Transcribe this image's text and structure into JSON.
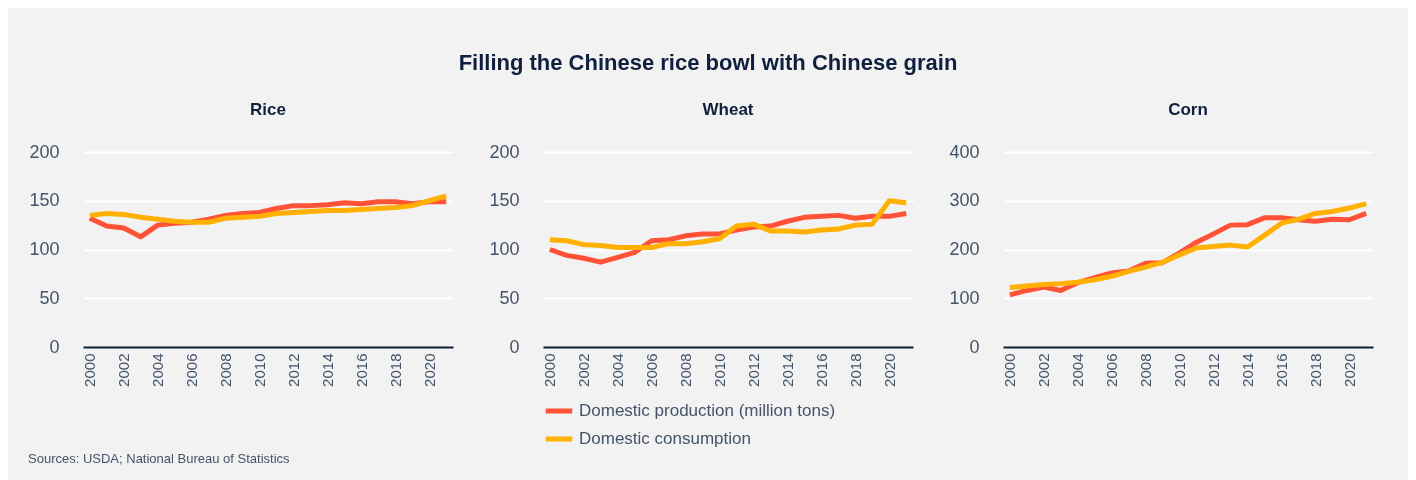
{
  "chart_data": [
    {
      "type": "line",
      "title": "Rice",
      "annotations": [
        "Filling the Chinese rice bowl with Chinese grain",
        "Sources: USDA; National Bureau of Statistics"
      ],
      "categories": [
        "2000",
        null,
        "2002",
        null,
        "2004",
        null,
        "2006",
        null,
        "2008",
        null,
        "2010",
        null,
        "2012",
        null,
        "2014",
        null,
        "2016",
        null,
        "2018",
        null,
        "2020",
        null
      ],
      "series": [
        {
          "color": "#ff5236",
          "values": [
            132,
            124,
            122,
            113,
            125,
            127,
            128,
            131,
            135,
            137,
            138,
            142,
            145,
            145,
            146,
            148,
            147,
            149,
            149,
            147,
            149,
            149
          ]
        },
        {
          "color": "#ffb000",
          "values": [
            135,
            137,
            136,
            133,
            131,
            129,
            128,
            128,
            132,
            133,
            134,
            137,
            138,
            139,
            140,
            140,
            141,
            142,
            143,
            145,
            150,
            155
          ]
        }
      ],
      "ylim": [
        0,
        200
      ],
      "yticks": [
        0,
        50,
        100,
        150,
        200
      ],
      "grid": "y"
    },
    {
      "type": "line",
      "title": "Wheat",
      "categories": [
        "2000",
        null,
        "2002",
        null,
        "2004",
        null,
        "2006",
        null,
        "2008",
        null,
        "2010",
        null,
        "2012",
        null,
        "2014",
        null,
        "2016",
        null,
        "2018",
        null,
        "2020",
        null
      ],
      "series": [
        {
          "name": "Domestic production (million tons)",
          "color": "#ff5236",
          "values": [
            100,
            94,
            91,
            87,
            92,
            97,
            109,
            110,
            114,
            116,
            116,
            120,
            123,
            124,
            129,
            133,
            134,
            135,
            132,
            134,
            134,
            137
          ]
        },
        {
          "name": "Domestic consumption",
          "color": "#ffb000",
          "values": [
            110,
            109,
            105,
            104,
            102,
            102,
            102,
            106,
            106,
            108,
            111,
            124,
            126,
            119,
            119,
            118,
            120,
            121,
            125,
            126,
            150,
            148
          ]
        }
      ],
      "ylim": [
        0,
        200
      ],
      "yticks": [
        0,
        50,
        100,
        150,
        200
      ],
      "grid": "y",
      "legend": "bottom"
    },
    {
      "type": "line",
      "title": "Corn",
      "categories": [
        "2000",
        null,
        "2002",
        null,
        "2004",
        null,
        "2006",
        null,
        "2008",
        null,
        "2010",
        null,
        "2012",
        null,
        "2014",
        null,
        "2016",
        null,
        "2018",
        null,
        "2020",
        null
      ],
      "series": [
        {
          "color": "#ff5236",
          "values": [
            107,
            116,
            123,
            116,
            132,
            142,
            152,
            156,
            172,
            173,
            193,
            215,
            232,
            250,
            251,
            265,
            265,
            261,
            258,
            262,
            261,
            274
          ]
        },
        {
          "color": "#ffb000",
          "values": [
            122,
            125,
            128,
            130,
            133,
            138,
            145,
            155,
            164,
            174,
            189,
            203,
            206,
            209,
            205,
            229,
            254,
            262,
            274,
            278,
            285,
            294
          ]
        }
      ],
      "ylim": [
        0,
        400
      ],
      "yticks": [
        0,
        100,
        200,
        300,
        400
      ],
      "grid": "y"
    }
  ]
}
